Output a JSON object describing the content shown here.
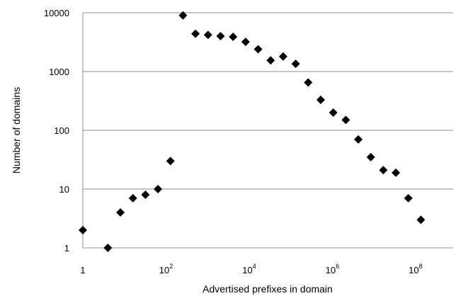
{
  "chart_data": {
    "type": "scatter",
    "title": "",
    "xlabel": "Advertised prefixes in domain",
    "ylabel": "Number of domains",
    "x_scale": "log",
    "y_scale": "log",
    "xlim": [
      1,
      1000000000
    ],
    "ylim": [
      1,
      10000
    ],
    "grid": "horizontal",
    "legend": "none",
    "marker": "diamond",
    "marker_color": "#000000",
    "x_tick_labels": [
      {
        "base": "1",
        "exp": ""
      },
      {
        "base": "10",
        "exp": "2"
      },
      {
        "base": "10",
        "exp": "4"
      },
      {
        "base": "10",
        "exp": "6"
      },
      {
        "base": "10",
        "exp": "8"
      }
    ],
    "x_tick_values": [
      1,
      100,
      10000,
      1000000,
      100000000
    ],
    "y_tick_labels": [
      "1",
      "10",
      "100",
      "1000",
      "10000"
    ],
    "y_tick_values": [
      1,
      10,
      100,
      1000,
      10000
    ],
    "series": [
      {
        "points": [
          [
            1,
            2
          ],
          [
            4,
            1
          ],
          [
            8,
            4
          ],
          [
            16,
            7
          ],
          [
            32,
            8
          ],
          [
            64,
            10
          ],
          [
            128,
            30
          ],
          [
            256,
            9000
          ],
          [
            512,
            4400
          ],
          [
            1024,
            4200
          ],
          [
            2048,
            4000
          ],
          [
            4096,
            3900
          ],
          [
            8192,
            3200
          ],
          [
            16384,
            2400
          ],
          [
            32768,
            1550
          ],
          [
            65536,
            1800
          ],
          [
            131072,
            1350
          ],
          [
            262144,
            650
          ],
          [
            524288,
            330
          ],
          [
            1048576,
            200
          ],
          [
            2097152,
            150
          ],
          [
            4194304,
            70
          ],
          [
            8388608,
            35
          ],
          [
            16777216,
            21
          ],
          [
            33554432,
            19
          ],
          [
            67108864,
            7
          ],
          [
            134217728,
            3
          ]
        ]
      }
    ]
  }
}
